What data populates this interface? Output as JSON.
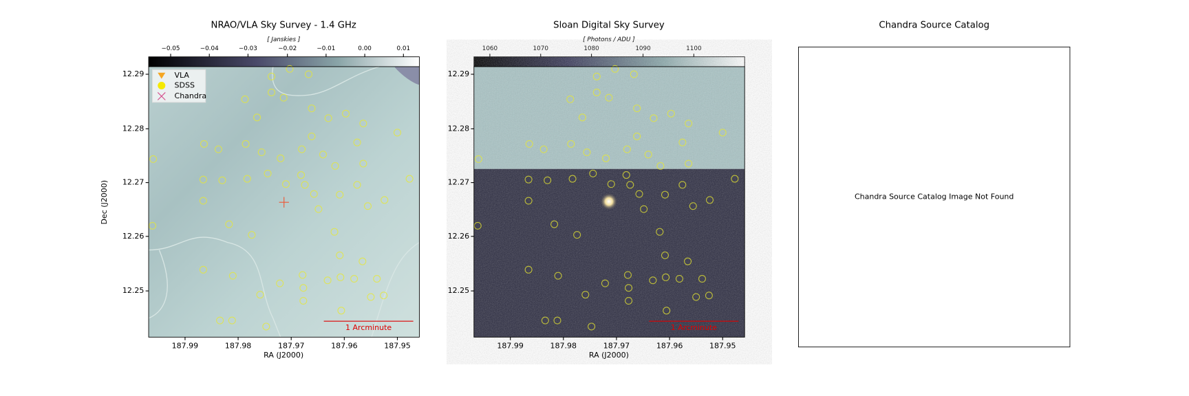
{
  "panels": [
    {
      "title": "NRAO/VLA Sky Survey - 1.4 GHz",
      "colorbar_label": "[ Janskies ]",
      "colorbar_ticks": [
        "−0.05",
        "−0.04",
        "−0.03",
        "−0.02",
        "−0.01",
        "0.00",
        "0.01"
      ],
      "xticks": [
        "187.99",
        "187.98",
        "187.97",
        "187.96",
        "187.95"
      ],
      "yticks": [
        "12.29",
        "12.28",
        "12.27",
        "12.26",
        "12.25"
      ],
      "xlabel": "RA (J2000)",
      "ylabel": "Dec (J2000)",
      "scale_bar": "1 Arcminute",
      "legend": [
        "VLA",
        "SDSS",
        "Chandra"
      ]
    },
    {
      "title": "Sloan Digital Sky Survey",
      "colorbar_label": "[ Photons / ADU ]",
      "colorbar_ticks": [
        "1060",
        "1070",
        "1080",
        "1090",
        "1100"
      ],
      "xticks": [
        "187.99",
        "187.98",
        "187.97",
        "187.96",
        "187.95"
      ],
      "yticks": [
        "12.29",
        "12.28",
        "12.27",
        "12.26",
        "12.25"
      ],
      "xlabel": "RA (J2000)",
      "scale_bar": "1 Arcminute"
    },
    {
      "title": "Chandra Source Catalog",
      "message": "Chandra Source Catalog Image Not Found"
    }
  ]
}
